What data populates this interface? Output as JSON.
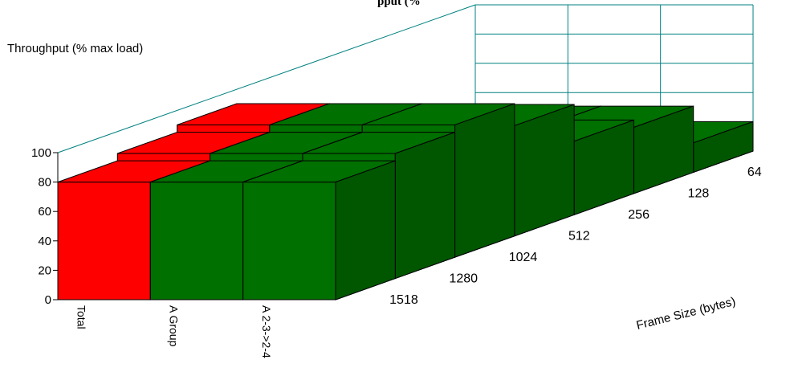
{
  "chart_data": {
    "type": "bar",
    "title": "",
    "title_fragment": "pput (%",
    "ylabel": "Throughput (% max load)",
    "xlabel": "",
    "zlabel": "Frame Size (bytes)",
    "ylim": [
      0,
      100
    ],
    "yticks": [
      "0",
      "20",
      "40",
      "60",
      "80",
      "100"
    ],
    "categories": [
      "Total",
      "A Group",
      "A 2-3->2-4"
    ],
    "frame_sizes": [
      "1518",
      "1280",
      "1024",
      "512",
      "256",
      "128",
      "64"
    ],
    "series": [
      {
        "frame_size": "1518",
        "values": [
          80,
          80,
          80
        ]
      },
      {
        "frame_size": "1280",
        "values": [
          85,
          85,
          85
        ]
      },
      {
        "frame_size": "1024",
        "values": [
          90,
          90,
          90
        ]
      },
      {
        "frame_size": "512",
        "values": [
          75,
          75,
          75
        ]
      },
      {
        "frame_size": "256",
        "values": [
          50,
          50,
          50
        ]
      },
      {
        "frame_size": "128",
        "values": [
          45,
          45,
          45
        ]
      },
      {
        "frame_size": "64",
        "values": [
          20,
          20,
          20
        ]
      }
    ],
    "colors": {
      "total": "#ff0000",
      "group": "#007000",
      "grid": "#008080"
    },
    "grid": true,
    "legend": "none"
  }
}
